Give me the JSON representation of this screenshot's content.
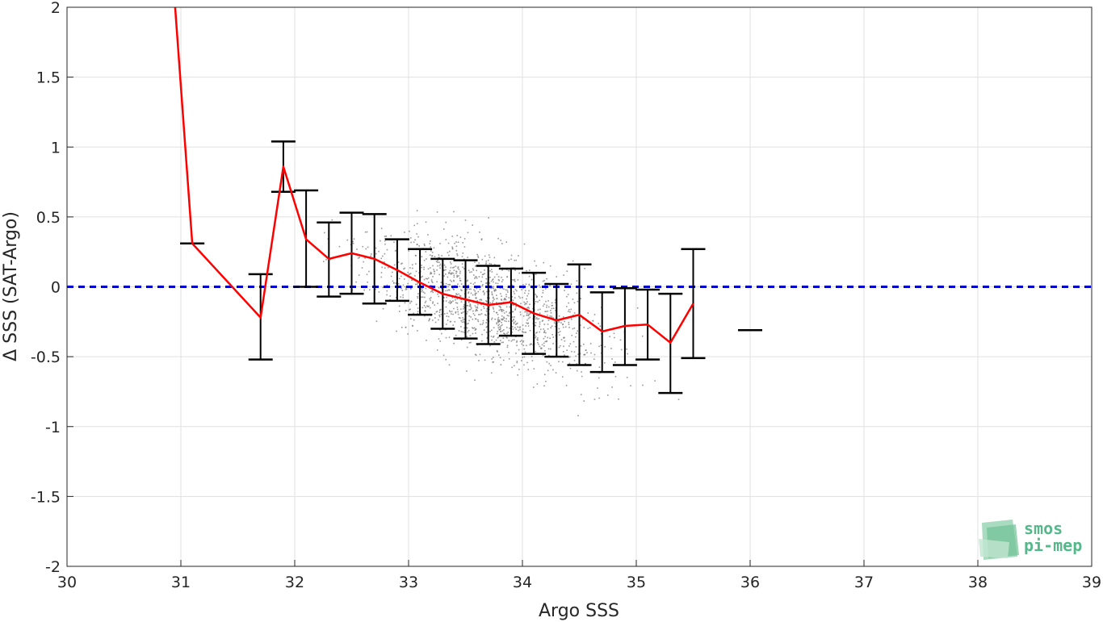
{
  "chart_data": {
    "type": "scatter",
    "title": "",
    "xlabel": "Argo SSS",
    "ylabel": "Δ SSS (SAT-Argo)",
    "xlim": [
      30,
      39
    ],
    "ylim": [
      -2,
      2
    ],
    "xticks": [
      "30",
      "31",
      "32",
      "33",
      "34",
      "35",
      "36",
      "37",
      "38",
      "39"
    ],
    "yticks": [
      "2",
      "1.5",
      "1",
      "0.5",
      "0",
      "-0.5",
      "-1",
      "-1.5",
      "-2"
    ],
    "grid": true,
    "zero_line": {
      "y": 0,
      "color": "#0000cc",
      "style": "dashed"
    },
    "mean_line": {
      "color": "#ff0000",
      "points": [
        [
          30.95,
          2.0
        ],
        [
          31.1,
          0.31
        ],
        [
          31.7,
          -0.22
        ],
        [
          31.9,
          0.86
        ],
        [
          32.1,
          0.34
        ],
        [
          32.3,
          0.2
        ],
        [
          32.5,
          0.24
        ],
        [
          32.7,
          0.2
        ],
        [
          32.9,
          0.12
        ],
        [
          33.1,
          0.03
        ],
        [
          33.3,
          -0.05
        ],
        [
          33.5,
          -0.09
        ],
        [
          33.7,
          -0.13
        ],
        [
          33.9,
          -0.11
        ],
        [
          34.1,
          -0.19
        ],
        [
          34.3,
          -0.24
        ],
        [
          34.5,
          -0.2
        ],
        [
          34.7,
          -0.32
        ],
        [
          34.9,
          -0.28
        ],
        [
          35.1,
          -0.27
        ],
        [
          35.3,
          -0.4
        ],
        [
          35.5,
          -0.12
        ]
      ]
    },
    "error_bars": {
      "color": "#000000",
      "bars": [
        {
          "x": 31.1,
          "low": 0.31,
          "high": 0.31
        },
        {
          "x": 31.7,
          "low": -0.52,
          "high": 0.09
        },
        {
          "x": 31.9,
          "low": 0.68,
          "high": 1.04
        },
        {
          "x": 32.1,
          "low": 0.0,
          "high": 0.69
        },
        {
          "x": 32.3,
          "low": -0.07,
          "high": 0.46
        },
        {
          "x": 32.5,
          "low": -0.05,
          "high": 0.53
        },
        {
          "x": 32.7,
          "low": -0.12,
          "high": 0.52
        },
        {
          "x": 32.9,
          "low": -0.1,
          "high": 0.34
        },
        {
          "x": 33.1,
          "low": -0.2,
          "high": 0.27
        },
        {
          "x": 33.3,
          "low": -0.3,
          "high": 0.2
        },
        {
          "x": 33.5,
          "low": -0.37,
          "high": 0.19
        },
        {
          "x": 33.7,
          "low": -0.41,
          "high": 0.15
        },
        {
          "x": 33.9,
          "low": -0.35,
          "high": 0.13
        },
        {
          "x": 34.1,
          "low": -0.48,
          "high": 0.1
        },
        {
          "x": 34.3,
          "low": -0.5,
          "high": 0.02
        },
        {
          "x": 34.5,
          "low": -0.56,
          "high": 0.16
        },
        {
          "x": 34.7,
          "low": -0.61,
          "high": -0.04
        },
        {
          "x": 34.9,
          "low": -0.56,
          "high": -0.01
        },
        {
          "x": 35.1,
          "low": -0.52,
          "high": -0.02
        },
        {
          "x": 35.3,
          "low": -0.76,
          "high": -0.05
        },
        {
          "x": 35.5,
          "low": -0.51,
          "high": 0.27
        },
        {
          "x": 36.0,
          "low": -0.31,
          "high": -0.31
        }
      ]
    },
    "scatter": {
      "color": "#777777",
      "count": 1400,
      "approx_trend": {
        "x_range": [
          31.6,
          35.6
        ],
        "center": [
          33.7,
          -0.12
        ],
        "slope": -0.25,
        "spread": 0.27
      }
    }
  },
  "logo": {
    "line1": "smos",
    "line2": "pi-mep",
    "color": "#55b88a"
  }
}
